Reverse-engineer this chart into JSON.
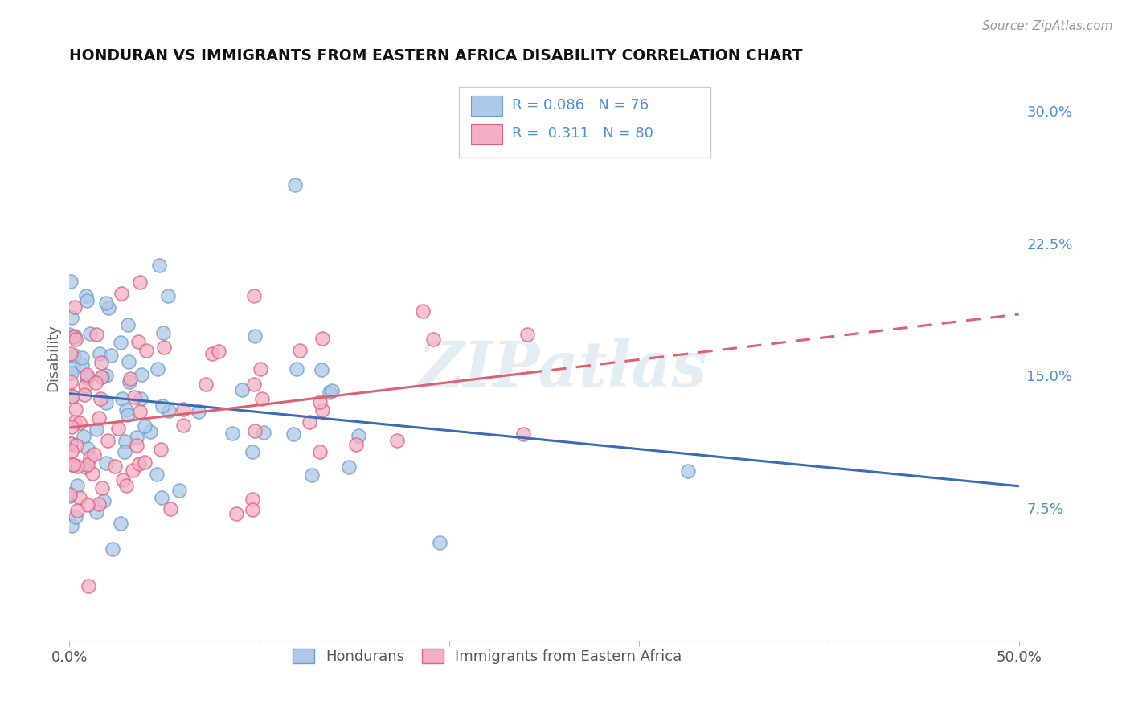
{
  "title": "HONDURAN VS IMMIGRANTS FROM EASTERN AFRICA DISABILITY CORRELATION CHART",
  "source": "Source: ZipAtlas.com",
  "ylabel": "Disability",
  "xlim": [
    0.0,
    0.5
  ],
  "ylim": [
    0.0,
    0.32
  ],
  "yticks_right": [
    0.075,
    0.15,
    0.225,
    0.3
  ],
  "yticklabels_right": [
    "7.5%",
    "15.0%",
    "22.5%",
    "30.0%"
  ],
  "series1_color": "#adc8e8",
  "series2_color": "#f4afc4",
  "series1_edge": "#6a9fd0",
  "series2_edge": "#e06080",
  "line1_color": "#3a6cb8",
  "line2_color": "#e06070",
  "grid_color": "#d8dde8",
  "background_color": "#ffffff",
  "watermark": "ZIPatlas",
  "R1": 0.086,
  "N1": 76,
  "R2": 0.311,
  "N2": 80,
  "legend_r1_text": "R = 0.086",
  "legend_n1_text": "N = 76",
  "legend_r2_text": "R =  0.311",
  "legend_n2_text": "N = 80",
  "legend_text_color": "#4a90d9",
  "legend_n_color": "#e05080"
}
